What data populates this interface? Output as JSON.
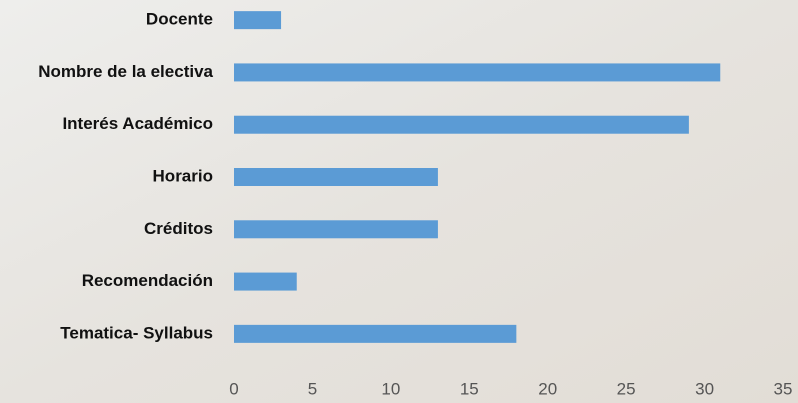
{
  "chart_data": {
    "type": "hbar",
    "categories": [
      "Docente",
      "Nombre de la electiva",
      "Interés Académico",
      "Horario",
      "Créditos",
      "Recomendación",
      "Tematica- Syllabus"
    ],
    "values": [
      3,
      31,
      29,
      13,
      13,
      4,
      18
    ],
    "color": "#5b9bd5",
    "xlim": [
      0,
      35
    ],
    "xticks": [
      0,
      5,
      10,
      15,
      20,
      25,
      30,
      35
    ],
    "grid": false
  }
}
